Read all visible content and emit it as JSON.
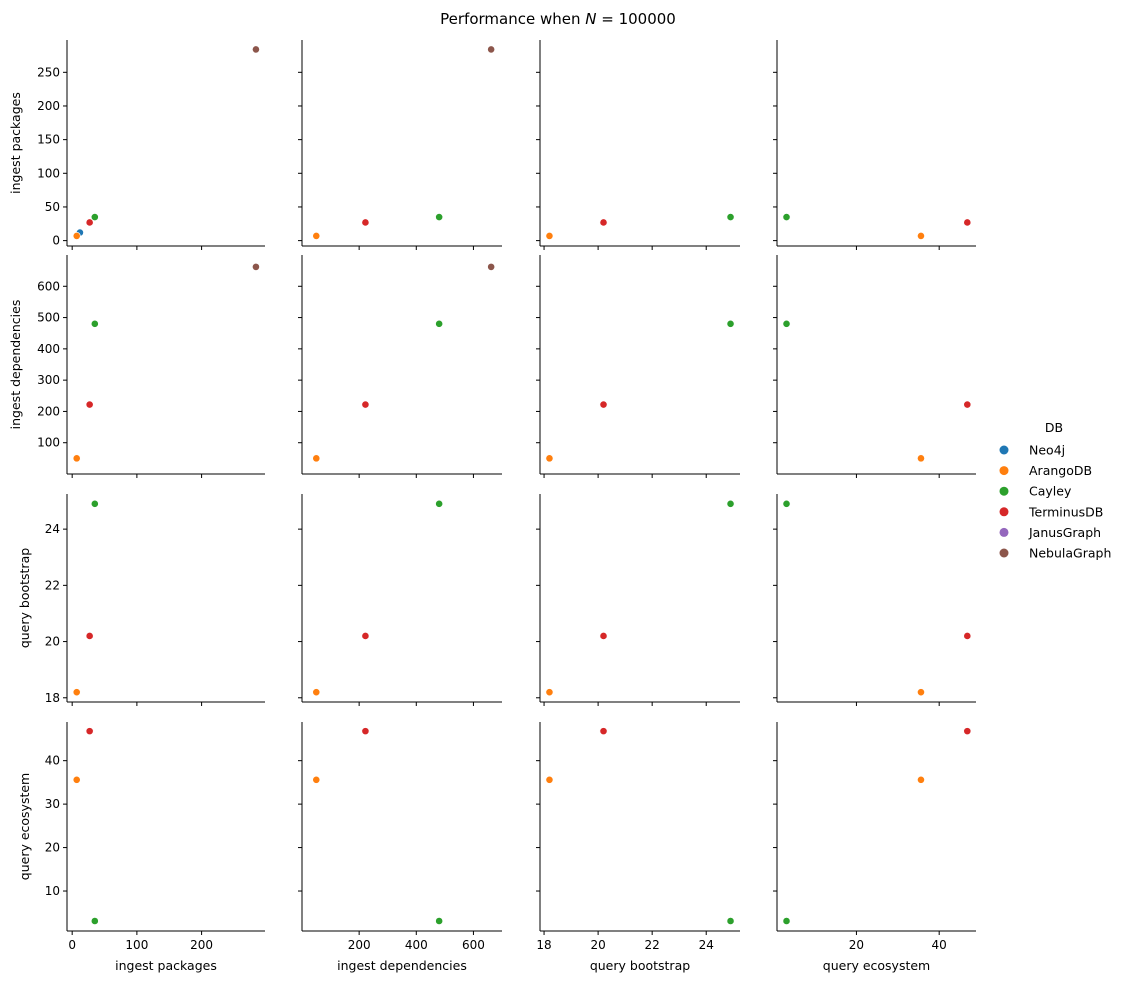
{
  "title": "Performance when N = 100000",
  "title_parts": {
    "prefix": "Performance when ",
    "var": "N",
    "suffix": " = 100000"
  },
  "chart_data": {
    "type": "scatter",
    "layout": "pairplot",
    "variables": [
      "ingest packages",
      "ingest dependencies",
      "query bootstrap",
      "query ecosystem"
    ],
    "axes": {
      "ingest packages": {
        "lim": [
          -8,
          298
        ],
        "ticks": [
          0,
          50,
          100,
          150,
          200,
          250
        ],
        "row_ticks": [
          0,
          50,
          100,
          150,
          200,
          250
        ],
        "col_ticks": [
          0,
          100,
          200
        ]
      },
      "ingest dependencies": {
        "lim": [
          0,
          700
        ],
        "row_ticks": [
          100,
          200,
          300,
          400,
          500,
          600
        ],
        "col_ticks": [
          200,
          400,
          600
        ]
      },
      "query bootstrap": {
        "lim": [
          17.85,
          25.25
        ],
        "row_ticks": [
          18,
          20,
          22,
          24
        ],
        "col_ticks": [
          18,
          20,
          22,
          24
        ]
      },
      "query ecosystem": {
        "lim": [
          0.8,
          48.9
        ],
        "row_ticks": [
          10,
          20,
          30,
          40
        ],
        "col_ticks": [
          20,
          40
        ]
      }
    },
    "legend": {
      "title": "DB",
      "position": "right",
      "entries": [
        "Neo4j",
        "ArangoDB",
        "Cayley",
        "TerminusDB",
        "JanusGraph",
        "NebulaGraph"
      ]
    },
    "colors": {
      "Neo4j": "#1f77b4",
      "ArangoDB": "#ff7f0e",
      "Cayley": "#2ca02c",
      "TerminusDB": "#d62728",
      "JanusGraph": "#9467bd",
      "NebulaGraph": "#8c564b"
    },
    "points": [
      {
        "db": "Neo4j",
        "ingest packages": 12,
        "ingest dependencies": null,
        "query bootstrap": null,
        "query ecosystem": null
      },
      {
        "db": "ArangoDB",
        "ingest packages": 7,
        "ingest dependencies": 50,
        "query bootstrap": 18.2,
        "query ecosystem": 35.6
      },
      {
        "db": "Cayley",
        "ingest packages": 35,
        "ingest dependencies": 480,
        "query bootstrap": 24.9,
        "query ecosystem": 3.1
      },
      {
        "db": "TerminusDB",
        "ingest packages": 27,
        "ingest dependencies": 222,
        "query bootstrap": 20.2,
        "query ecosystem": 46.8
      },
      {
        "db": "JanusGraph",
        "ingest packages": null,
        "ingest dependencies": null,
        "query bootstrap": null,
        "query ecosystem": null
      },
      {
        "db": "NebulaGraph",
        "ingest packages": 284,
        "ingest dependencies": 662,
        "query bootstrap": null,
        "query ecosystem": null
      }
    ]
  }
}
